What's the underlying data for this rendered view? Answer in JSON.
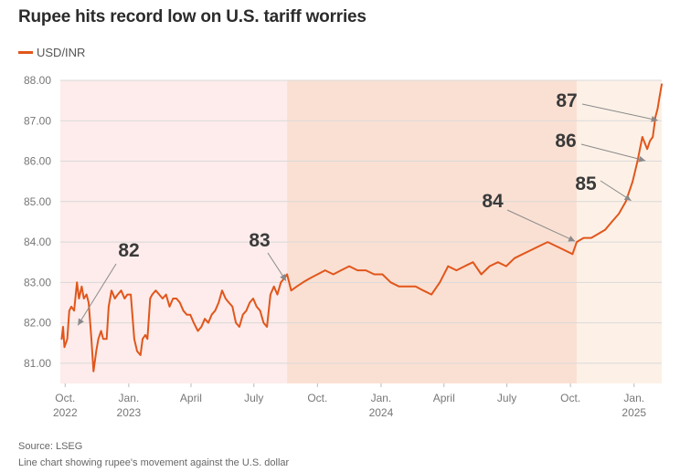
{
  "title": "Rupee hits record low on U.S. tariff worries",
  "legend": {
    "label": "USD/INR",
    "color": "#e1561b"
  },
  "source": "Source: LSEG",
  "caption": "Line chart showing rupee's movement against the U.S. dollar",
  "chart_data": {
    "type": "line",
    "title": "Rupee hits record low on U.S. tariff worries",
    "xlabel": "",
    "ylabel": "",
    "ylim": [
      80.5,
      88.0
    ],
    "xlim": [
      "2022-09-24",
      "2025-02-10"
    ],
    "y_ticks": [
      "81.00",
      "82.00",
      "83.00",
      "84.00",
      "85.00",
      "86.00",
      "87.00",
      "88.00"
    ],
    "x_ticks": [
      {
        "date": "2022-10-01",
        "line1": "Oct.",
        "line2": "2022"
      },
      {
        "date": "2023-01-01",
        "line1": "Jan.",
        "line2": "2023"
      },
      {
        "date": "2023-04-01",
        "line1": "April",
        "line2": ""
      },
      {
        "date": "2023-07-01",
        "line1": "July",
        "line2": ""
      },
      {
        "date": "2023-10-01",
        "line1": "Oct.",
        "line2": ""
      },
      {
        "date": "2024-01-01",
        "line1": "Jan.",
        "line2": "2024"
      },
      {
        "date": "2024-04-01",
        "line1": "April",
        "line2": ""
      },
      {
        "date": "2024-07-01",
        "line1": "July",
        "line2": ""
      },
      {
        "date": "2024-10-01",
        "line1": "Oct.",
        "line2": ""
      },
      {
        "date": "2025-01-01",
        "line1": "Jan.",
        "line2": "2025"
      }
    ],
    "shaded_periods": [
      {
        "start": "2022-09-24",
        "end": "2023-08-18",
        "color": "#fdeceb"
      },
      {
        "start": "2023-08-18",
        "end": "2024-10-10",
        "color": "#fae0d3"
      },
      {
        "start": "2024-10-10",
        "end": "2025-02-10",
        "color": "#fdf1e7"
      }
    ],
    "grid": true,
    "series": [
      {
        "name": "USD/INR",
        "color": "#e1561b",
        "x": [
          "2022-09-26",
          "2022-09-28",
          "2022-09-30",
          "2022-10-04",
          "2022-10-07",
          "2022-10-10",
          "2022-10-14",
          "2022-10-18",
          "2022-10-21",
          "2022-10-25",
          "2022-10-28",
          "2022-11-01",
          "2022-11-04",
          "2022-11-08",
          "2022-11-11",
          "2022-11-15",
          "2022-11-18",
          "2022-11-22",
          "2022-11-25",
          "2022-11-30",
          "2022-12-03",
          "2022-12-07",
          "2022-12-12",
          "2022-12-16",
          "2022-12-21",
          "2022-12-26",
          "2022-12-30",
          "2023-01-04",
          "2023-01-09",
          "2023-01-13",
          "2023-01-18",
          "2023-01-21",
          "2023-01-25",
          "2023-01-28",
          "2023-02-01",
          "2023-02-04",
          "2023-02-09",
          "2023-02-14",
          "2023-02-19",
          "2023-02-24",
          "2023-03-01",
          "2023-03-06",
          "2023-03-11",
          "2023-03-16",
          "2023-03-21",
          "2023-03-26",
          "2023-03-31",
          "2023-04-05",
          "2023-04-11",
          "2023-04-16",
          "2023-04-21",
          "2023-04-26",
          "2023-05-01",
          "2023-05-06",
          "2023-05-11",
          "2023-05-16",
          "2023-05-21",
          "2023-05-26",
          "2023-05-31",
          "2023-06-05",
          "2023-06-10",
          "2023-06-15",
          "2023-06-20",
          "2023-06-25",
          "2023-06-30",
          "2023-07-05",
          "2023-07-10",
          "2023-07-15",
          "2023-07-20",
          "2023-07-25",
          "2023-07-30",
          "2023-08-04",
          "2023-08-09",
          "2023-08-14",
          "2023-08-18",
          "2023-08-24",
          "2023-09-01",
          "2023-09-10",
          "2023-09-20",
          "2023-10-01",
          "2023-10-12",
          "2023-10-24",
          "2023-11-04",
          "2023-11-16",
          "2023-11-28",
          "2023-12-10",
          "2023-12-22",
          "2024-01-03",
          "2024-01-15",
          "2024-01-27",
          "2024-02-08",
          "2024-02-20",
          "2024-03-02",
          "2024-03-14",
          "2024-03-26",
          "2024-04-07",
          "2024-04-19",
          "2024-05-01",
          "2024-05-13",
          "2024-05-25",
          "2024-06-06",
          "2024-06-18",
          "2024-06-30",
          "2024-07-12",
          "2024-07-24",
          "2024-08-05",
          "2024-08-17",
          "2024-08-29",
          "2024-09-10",
          "2024-09-22",
          "2024-10-04",
          "2024-10-10",
          "2024-10-20",
          "2024-10-31",
          "2024-11-10",
          "2024-11-20",
          "2024-11-30",
          "2024-12-10",
          "2024-12-20",
          "2024-12-30",
          "2025-01-06",
          "2025-01-13",
          "2025-01-20",
          "2025-01-24",
          "2025-01-28",
          "2025-02-01",
          "2025-02-04",
          "2025-02-07",
          "2025-02-10"
        ],
        "y": [
          81.6,
          81.9,
          81.4,
          81.6,
          82.3,
          82.4,
          82.3,
          83.0,
          82.6,
          82.9,
          82.6,
          82.7,
          82.5,
          81.6,
          80.8,
          81.3,
          81.6,
          81.8,
          81.6,
          81.6,
          82.4,
          82.8,
          82.6,
          82.7,
          82.8,
          82.6,
          82.7,
          82.7,
          81.6,
          81.3,
          81.2,
          81.6,
          81.7,
          81.6,
          82.6,
          82.7,
          82.8,
          82.7,
          82.6,
          82.7,
          82.4,
          82.6,
          82.6,
          82.5,
          82.3,
          82.2,
          82.2,
          82.0,
          81.8,
          81.9,
          82.1,
          82.0,
          82.2,
          82.3,
          82.5,
          82.8,
          82.6,
          82.5,
          82.4,
          82.0,
          81.9,
          82.2,
          82.3,
          82.5,
          82.6,
          82.4,
          82.3,
          82.0,
          81.9,
          82.7,
          82.9,
          82.7,
          83.0,
          83.1,
          83.2,
          82.8,
          82.9,
          83.0,
          83.1,
          83.2,
          83.3,
          83.2,
          83.3,
          83.4,
          83.3,
          83.3,
          83.2,
          83.2,
          83.0,
          82.9,
          82.9,
          82.9,
          82.8,
          82.7,
          83.0,
          83.4,
          83.3,
          83.4,
          83.5,
          83.2,
          83.4,
          83.5,
          83.4,
          83.6,
          83.7,
          83.8,
          83.9,
          84.0,
          83.9,
          83.8,
          83.7,
          84.0,
          84.1,
          84.1,
          84.2,
          84.3,
          84.5,
          84.7,
          85.0,
          85.5,
          86.0,
          86.6,
          86.3,
          86.5,
          86.6,
          87.1,
          87.3,
          87.6,
          87.9
        ]
      }
    ],
    "annotations": [
      {
        "label": "82",
        "target_date": "2022-10-18",
        "target_value": 81.9
      },
      {
        "label": "83",
        "target_date": "2023-08-18",
        "target_value": 83.0
      },
      {
        "label": "84",
        "target_date": "2024-10-10",
        "target_value": 84.0
      },
      {
        "label": "85",
        "target_date": "2024-12-30",
        "target_value": 85.0
      },
      {
        "label": "86",
        "target_date": "2025-01-20",
        "target_value": 86.0
      },
      {
        "label": "87",
        "target_date": "2025-02-07",
        "target_value": 87.0
      }
    ]
  }
}
